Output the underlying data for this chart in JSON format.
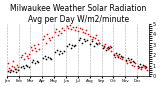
{
  "title": "Milwaukee Weather Solar Radiation\nAvg per Day W/m2/minute",
  "title_fontsize": 5.5,
  "background_color": "#ffffff",
  "plot_bg_color": "#ffffff",
  "grid_color": "#aaaaaa",
  "months": [
    "Jan",
    "Feb",
    "Mar",
    "Apr",
    "May",
    "Jun",
    "Jul",
    "Aug",
    "Sep",
    "Oct",
    "Nov",
    "Dec"
  ],
  "month_positions": [
    0,
    31,
    59,
    90,
    120,
    151,
    181,
    212,
    243,
    273,
    304,
    334
  ],
  "ylim": [
    0,
    500
  ],
  "yticks": [
    0,
    100,
    200,
    300,
    400,
    500
  ],
  "ytick_labels": [
    "0",
    "1",
    "2",
    "3",
    "4",
    "5"
  ],
  "red_x": [
    3,
    5,
    8,
    12,
    15,
    18,
    22,
    25,
    29,
    35,
    38,
    42,
    46,
    50,
    54,
    57,
    62,
    65,
    68,
    72,
    75,
    79,
    83,
    92,
    95,
    99,
    103,
    107,
    111,
    115,
    122,
    126,
    130,
    134,
    138,
    142,
    146,
    153,
    157,
    161,
    165,
    169,
    173,
    177,
    183,
    187,
    191,
    195,
    199,
    203,
    207,
    213,
    217,
    221,
    225,
    229,
    233,
    237,
    244,
    248,
    252,
    256,
    260,
    264,
    268,
    274,
    278,
    282,
    286,
    290,
    294,
    298,
    305,
    309,
    313,
    317,
    321,
    325,
    329,
    335,
    339,
    343,
    347,
    351,
    355,
    359
  ],
  "red_y": [
    120,
    80,
    60,
    100,
    140,
    90,
    70,
    110,
    85,
    180,
    200,
    160,
    220,
    190,
    170,
    210,
    280,
    250,
    300,
    270,
    240,
    310,
    260,
    350,
    380,
    320,
    400,
    360,
    340,
    370,
    420,
    450,
    390,
    430,
    410,
    460,
    440,
    480,
    460,
    490,
    450,
    470,
    440,
    465,
    430,
    460,
    450,
    420,
    410,
    440,
    400,
    380,
    350,
    370,
    360,
    390,
    340,
    320,
    300,
    280,
    310,
    270,
    260,
    290,
    240,
    210,
    180,
    200,
    190,
    170,
    160,
    185,
    140,
    120,
    150,
    130,
    110,
    100,
    125,
    80,
    90,
    70,
    85,
    95,
    75,
    60
  ],
  "black_x": [
    2,
    6,
    10,
    14,
    19,
    23,
    27,
    36,
    40,
    44,
    48,
    52,
    56,
    63,
    67,
    71,
    76,
    80,
    91,
    96,
    100,
    105,
    109,
    113,
    123,
    127,
    132,
    136,
    141,
    145,
    154,
    158,
    163,
    167,
    171,
    175,
    184,
    188,
    193,
    197,
    201,
    205,
    214,
    218,
    223,
    227,
    231,
    236,
    245,
    249,
    254,
    258,
    262,
    266,
    275,
    280,
    284,
    288,
    293,
    296,
    306,
    310,
    315,
    319,
    323,
    327,
    336,
    341,
    345,
    349,
    353,
    357
  ],
  "black_y": [
    50,
    40,
    55,
    45,
    65,
    35,
    60,
    90,
    100,
    80,
    110,
    95,
    85,
    130,
    150,
    120,
    140,
    135,
    170,
    190,
    160,
    180,
    175,
    165,
    230,
    250,
    210,
    240,
    220,
    235,
    290,
    310,
    270,
    300,
    285,
    295,
    340,
    360,
    320,
    350,
    335,
    345,
    310,
    330,
    290,
    320,
    305,
    315,
    270,
    290,
    250,
    280,
    265,
    275,
    200,
    220,
    180,
    210,
    195,
    185,
    150,
    170,
    130,
    160,
    145,
    135,
    100,
    115,
    90,
    105,
    95,
    85
  ]
}
